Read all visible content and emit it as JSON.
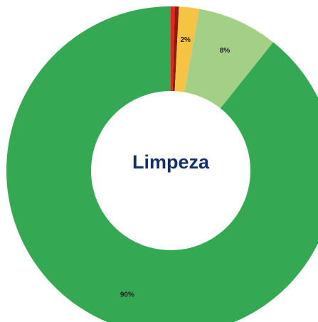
{
  "chart_data": {
    "type": "donut",
    "title": "Limpeza",
    "categories": [
      null,
      null,
      null,
      null,
      null
    ],
    "values": [
      0.4,
      0.4,
      2,
      8,
      90
    ],
    "value_labels": [
      null,
      null,
      "2%",
      "8%",
      "90%"
    ],
    "colors": [
      "#e3261c",
      "#8e1b0e",
      "#f6c343",
      "#a4cf87",
      "#34a853"
    ]
  }
}
